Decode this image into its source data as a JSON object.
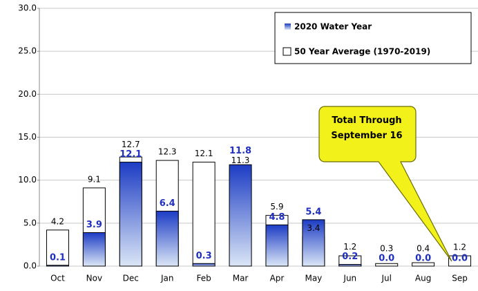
{
  "chart_data": {
    "type": "bar",
    "annotation": "Total Through September 16",
    "categories": [
      "Oct",
      "Nov",
      "Dec",
      "Jan",
      "Feb",
      "Mar",
      "Apr",
      "May",
      "Jun",
      "Jul",
      "Aug",
      "Sep"
    ],
    "series": [
      {
        "name": "2020 Water Year",
        "color": "#1c3cc4",
        "values": [
          0.1,
          3.9,
          12.1,
          6.4,
          0.3,
          11.8,
          4.8,
          5.4,
          0.2,
          0.0,
          0.0,
          0.0
        ],
        "value_labels": [
          "0.1",
          "3.9",
          "12.1",
          "6.4",
          "0.3",
          "11.8",
          "4.8",
          "5.4",
          "0.2",
          "0.0",
          "0.0",
          "0.0"
        ]
      },
      {
        "name": "50 Year Average (1970-2019)",
        "color": "#ffffff",
        "values": [
          4.2,
          9.1,
          12.7,
          12.3,
          12.1,
          11.3,
          5.9,
          3.4,
          1.2,
          0.3,
          0.4,
          1.2
        ],
        "value_labels": [
          "4.2",
          "9.1",
          "12.7",
          "12.3",
          "12.1",
          "11.3",
          "5.9",
          "3.4",
          "1.2",
          "0.3",
          "0.4",
          "1.2"
        ]
      }
    ],
    "ylim": [
      0,
      30
    ],
    "yticks": [
      {
        "value": 0,
        "label": "0.0"
      },
      {
        "value": 5,
        "label": "5.0"
      },
      {
        "value": 10,
        "label": "10.0"
      },
      {
        "value": 15,
        "label": "15.0"
      },
      {
        "value": 20,
        "label": "20.0"
      },
      {
        "value": 25,
        "label": "25.0"
      },
      {
        "value": 30,
        "label": "30.0"
      }
    ],
    "grid": true
  }
}
